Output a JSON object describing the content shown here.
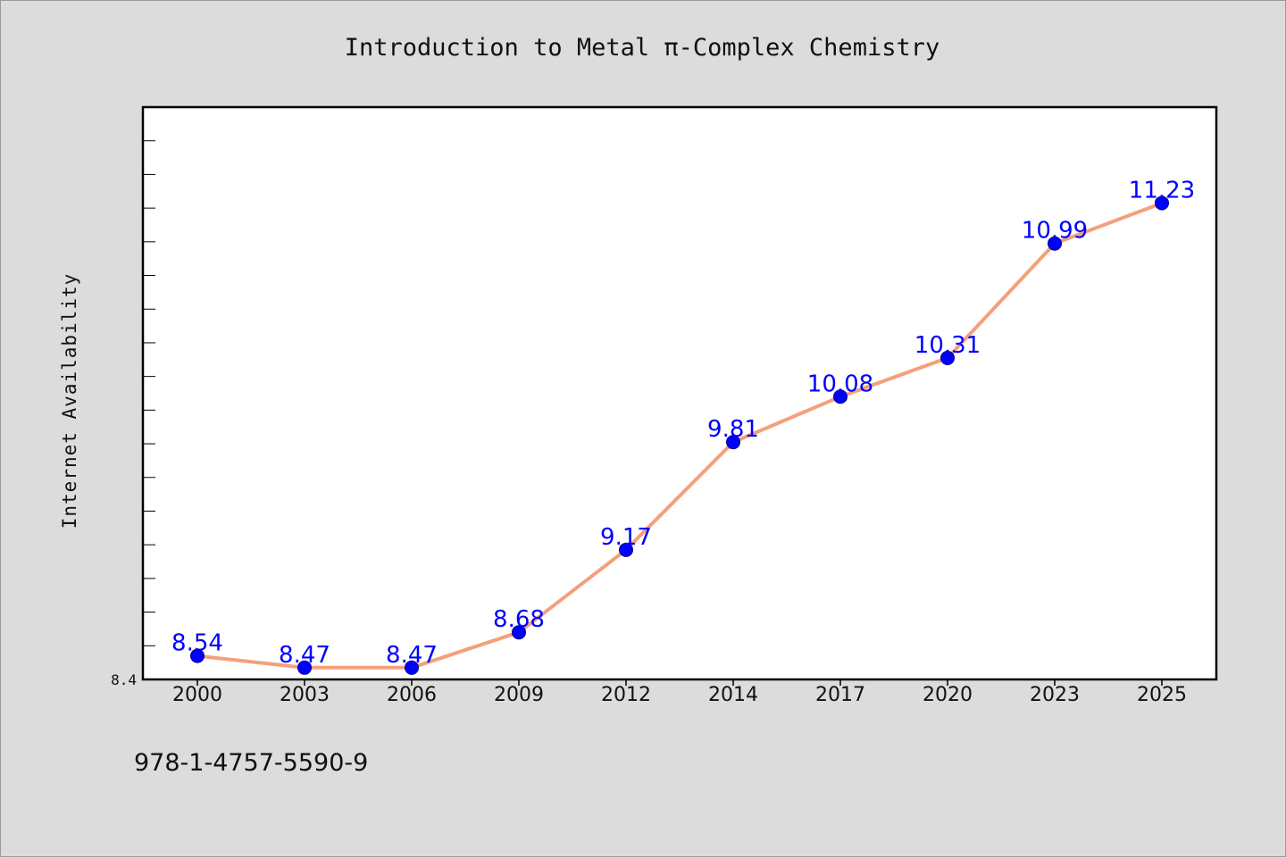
{
  "chart_data": {
    "type": "line",
    "title": "Introduction to Metal  π-Complex Chemistry",
    "xlabel": "",
    "ylabel": "Internet Availability",
    "categories": [
      "2000",
      "2003",
      "2006",
      "2009",
      "2012",
      "2014",
      "2017",
      "2020",
      "2023",
      "2025"
    ],
    "series": [
      {
        "values": [
          8.54,
          8.47,
          8.47,
          8.68,
          9.17,
          9.81,
          10.08,
          10.31,
          10.99,
          11.23
        ],
        "data_labels": [
          "8.54",
          "8.47",
          "8.47",
          "8.68",
          "9.17",
          "9.81",
          "10.08",
          "10.31",
          "10.99",
          "11.23"
        ]
      }
    ],
    "ylim": [
      8.4,
      11.8
    ],
    "y_tick_labels": [
      "8.4"
    ],
    "grid": false,
    "colors": {
      "line": "#f4a07c",
      "marker": "#0000ff",
      "data_label": "#0000ff",
      "background": "#dcdcdc",
      "plot_background": "#ffffff"
    }
  },
  "footer": {
    "isbn": "978-1-4757-5590-9"
  }
}
